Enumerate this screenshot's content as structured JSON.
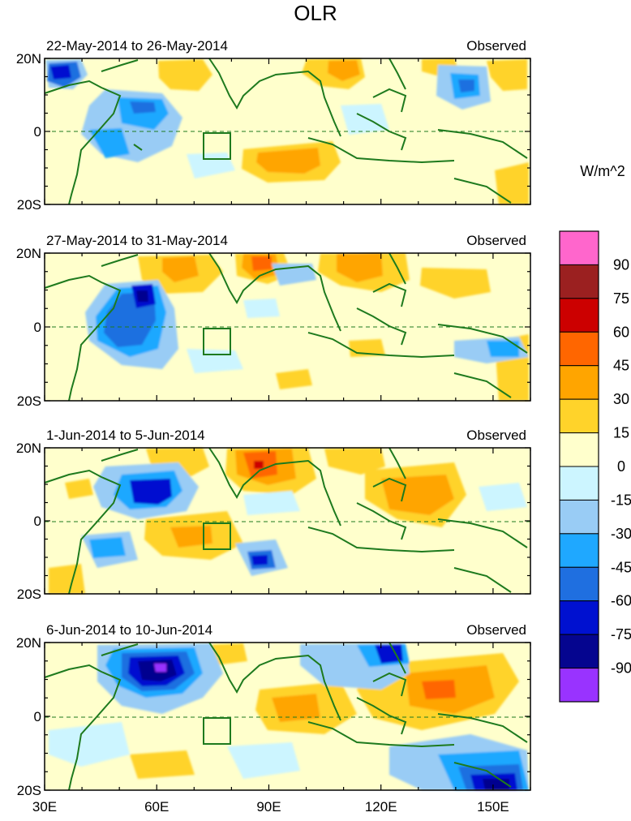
{
  "figure": {
    "title": "OLR",
    "units_label": "W/m^2"
  },
  "panels": [
    {
      "period": "22-May-2014 to 26-May-2014",
      "tag": "Observed"
    },
    {
      "period": "27-May-2014 to 31-May-2014",
      "tag": "Observed"
    },
    {
      "period": "1-Jun-2014 to 5-Jun-2014",
      "tag": "Observed"
    },
    {
      "period": "6-Jun-2014 to 10-Jun-2014",
      "tag": "Observed"
    }
  ],
  "axes": {
    "lon_range": [
      30,
      160
    ],
    "lat_range": [
      -20,
      20
    ],
    "lon_ticks": [
      {
        "value": 30,
        "label": "30E"
      },
      {
        "value": 60,
        "label": "60E"
      },
      {
        "value": 90,
        "label": "90E"
      },
      {
        "value": 120,
        "label": "120E"
      },
      {
        "value": 150,
        "label": "150E"
      }
    ],
    "lat_ticks": [
      {
        "value": 20,
        "label": "20N"
      },
      {
        "value": 0,
        "label": "0"
      },
      {
        "value": -20,
        "label": "20S"
      }
    ]
  },
  "colorbar": {
    "bins": [
      {
        "color": "#ff66cc",
        "label": "90"
      },
      {
        "color": "#9b2020",
        "label": "75"
      },
      {
        "color": "#cc0000",
        "label": "60"
      },
      {
        "color": "#ff6600",
        "label": "45"
      },
      {
        "color": "#ffa500",
        "label": "30"
      },
      {
        "color": "#ffd32a",
        "label": "15"
      },
      {
        "color": "#ffffcc",
        "label": "0"
      },
      {
        "color": "#ccf5ff",
        "label": "-15"
      },
      {
        "color": "#99ccf5",
        "label": "-30"
      },
      {
        "color": "#1fa8ff",
        "label": "-45"
      },
      {
        "color": "#1f6fe0",
        "label": "-60"
      },
      {
        "color": "#0011d0",
        "label": "-75"
      },
      {
        "color": "#05058f",
        "label": "-90"
      },
      {
        "color": "#9933ff",
        "label": ""
      }
    ]
  },
  "colors": {
    "coast": "#1e7a1e",
    "neutral": "#ffffcc"
  }
}
